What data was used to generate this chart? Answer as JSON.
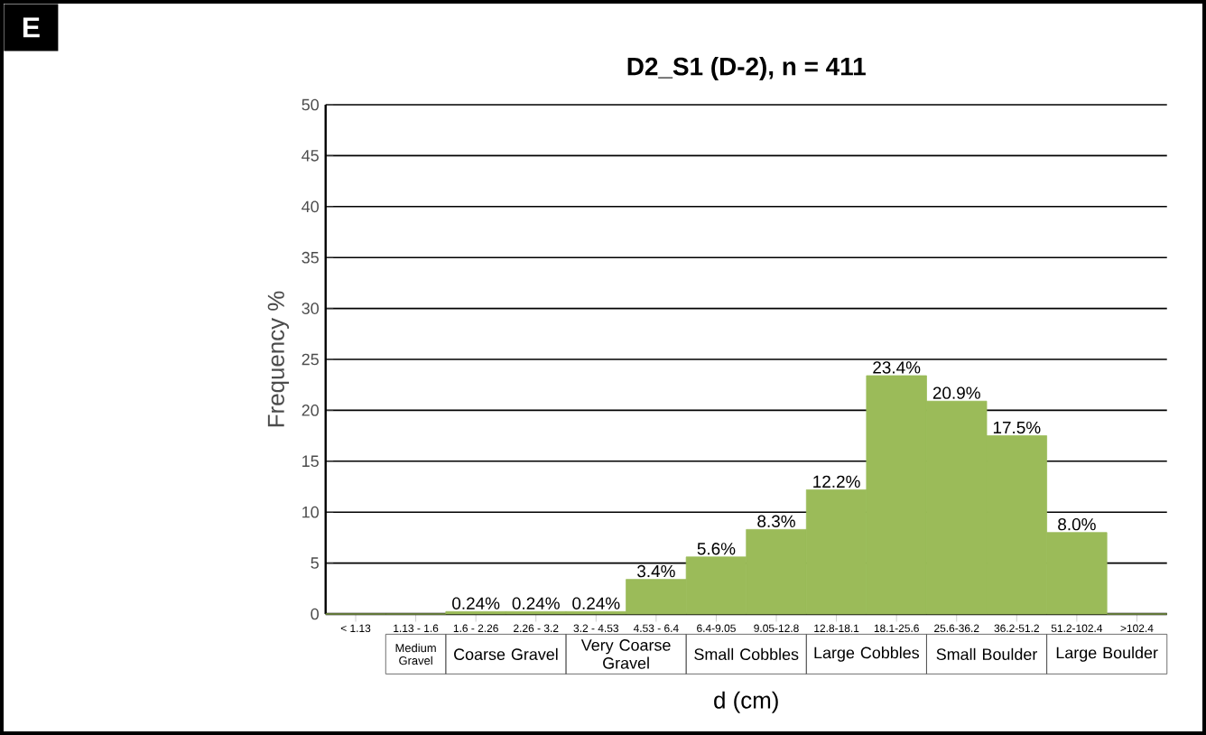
{
  "chart_data": {
    "type": "bar",
    "title": "D2_S1 (D-2), n = 411",
    "xlabel": "d (cm)",
    "ylabel": "Frequency %",
    "categories": [
      "< 1.13",
      "1.13 - 1.6",
      "1.6 - 2.26",
      "2.26 - 3.2",
      "3.2 - 4.53",
      "4.53 - 6.4",
      "6.4-9.05",
      "9.05-12.8",
      "12.8-18.1",
      "18.1-25.6",
      "25.6-36.2",
      "36.2-51.2",
      "51.2-102.4",
      ">102.4"
    ],
    "values": [
      0,
      0,
      0.24,
      0.24,
      0.24,
      3.4,
      5.6,
      8.3,
      12.2,
      23.4,
      20.9,
      17.5,
      8.0,
      0
    ],
    "value_labels": [
      null,
      null,
      "0.24%",
      "0.24%",
      "0.24%",
      "3.4%",
      "5.6%",
      "8.3%",
      "12.2%",
      "23.4%",
      "20.9%",
      "17.5%",
      "8.0%",
      null
    ],
    "color": "#9bbb59",
    "ylim": [
      0,
      50
    ],
    "yticks": [
      0,
      5,
      10,
      15,
      20,
      25,
      30,
      35,
      40,
      45,
      50
    ],
    "grid": "y",
    "annotations": [
      "E",
      "Medium Gravel",
      "Coarse Gravel",
      "Very Coarse Gravel",
      "Small Cobbles",
      "Large Cobbles",
      "Small Boulder",
      "Large Boulder"
    ]
  }
}
